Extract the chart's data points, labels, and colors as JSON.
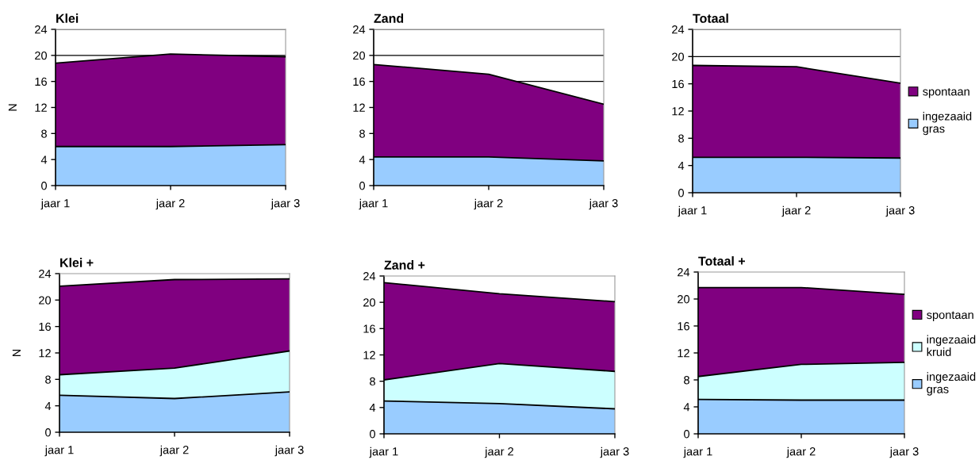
{
  "chart_data": [
    {
      "type": "area",
      "title": "Klei",
      "ylabel": "N",
      "categories": [
        "jaar 1",
        "jaar 2",
        "jaar 3"
      ],
      "stacked": true,
      "ylim": [
        0,
        24
      ],
      "yticks": [
        0,
        4,
        8,
        12,
        16,
        20,
        24
      ],
      "grid": "y",
      "legend": false,
      "series": [
        {
          "color": "#99ccff",
          "values": [
            6.0,
            6.0,
            6.3
          ]
        },
        {
          "color": "#800080",
          "values": [
            12.8,
            14.2,
            13.5
          ]
        }
      ]
    },
    {
      "type": "area",
      "title": "Zand",
      "categories": [
        "jaar 1",
        "jaar 2",
        "jaar 3"
      ],
      "stacked": true,
      "ylim": [
        0,
        24
      ],
      "yticks": [
        0,
        4,
        8,
        12,
        16,
        20,
        24
      ],
      "grid": "y",
      "legend": false,
      "series": [
        {
          "color": "#99ccff",
          "values": [
            4.4,
            4.4,
            3.8
          ]
        },
        {
          "color": "#800080",
          "values": [
            14.2,
            12.7,
            8.7
          ]
        }
      ]
    },
    {
      "type": "area",
      "title": "Totaal",
      "categories": [
        "jaar 1",
        "jaar 2",
        "jaar 3"
      ],
      "stacked": true,
      "ylim": [
        0,
        24
      ],
      "yticks": [
        0,
        4,
        8,
        12,
        16,
        20,
        24
      ],
      "grid": "y",
      "legend": "right",
      "series": [
        {
          "name": "ingezaaid gras",
          "color": "#99ccff",
          "values": [
            5.2,
            5.2,
            5.1
          ]
        },
        {
          "name": "spontaan",
          "color": "#800080",
          "values": [
            13.5,
            13.3,
            11.0
          ]
        }
      ]
    },
    {
      "type": "area",
      "title": "Klei +",
      "ylabel": "N",
      "categories": [
        "jaar 1",
        "jaar 2",
        "jaar 3"
      ],
      "stacked": true,
      "ylim": [
        0,
        24
      ],
      "yticks": [
        0,
        4,
        8,
        12,
        16,
        20,
        24
      ],
      "legend": false,
      "series": [
        {
          "color": "#99ccff",
          "values": [
            5.6,
            5.1,
            6.1
          ]
        },
        {
          "color": "#ccffff",
          "values": [
            3.1,
            4.6,
            6.2
          ]
        },
        {
          "color": "#800080",
          "values": [
            13.4,
            13.4,
            10.9
          ]
        }
      ]
    },
    {
      "type": "area",
      "title": "Zand +",
      "categories": [
        "jaar 1",
        "jaar 2",
        "jaar 3"
      ],
      "stacked": true,
      "ylim": [
        0,
        24
      ],
      "yticks": [
        0,
        4,
        8,
        12,
        16,
        20,
        24
      ],
      "legend": false,
      "series": [
        {
          "color": "#99ccff",
          "values": [
            5.0,
            4.6,
            3.8
          ]
        },
        {
          "color": "#ccffff",
          "values": [
            3.2,
            6.1,
            5.7
          ]
        },
        {
          "color": "#800080",
          "values": [
            14.8,
            10.6,
            10.6
          ]
        }
      ]
    },
    {
      "type": "area",
      "title": "Totaal +",
      "categories": [
        "jaar 1",
        "jaar 2",
        "jaar 3"
      ],
      "stacked": true,
      "ylim": [
        0,
        24
      ],
      "yticks": [
        0,
        4,
        8,
        12,
        16,
        20,
        24
      ],
      "legend": "right",
      "series": [
        {
          "name": "ingezaaid gras",
          "color": "#99ccff",
          "values": [
            5.1,
            5.0,
            5.0
          ]
        },
        {
          "name": "ingezaaid kruid",
          "color": "#ccffff",
          "values": [
            3.4,
            5.3,
            5.6
          ]
        },
        {
          "name": "spontaan",
          "color": "#800080",
          "values": [
            13.2,
            11.4,
            10.1
          ]
        }
      ]
    }
  ]
}
